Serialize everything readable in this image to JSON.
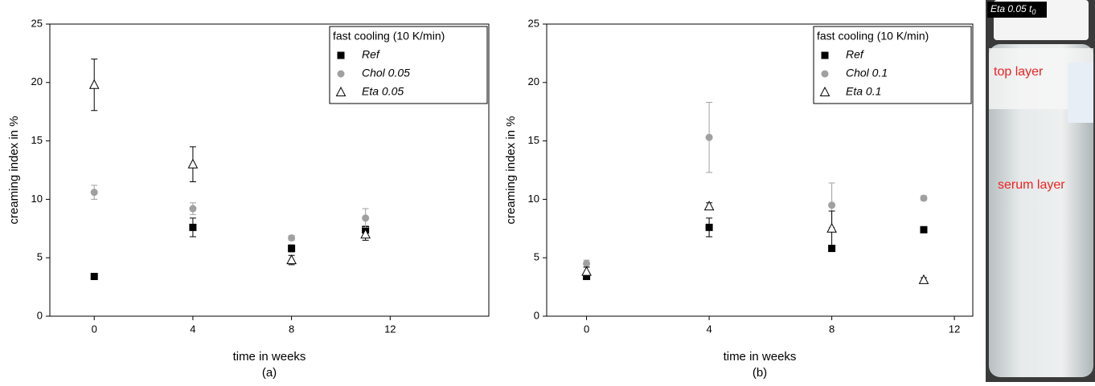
{
  "chart_data": [
    {
      "type": "scatter",
      "x_label": "time in weeks",
      "y_label": "creaming index in %",
      "caption": "(a)",
      "legend_title": "fast cooling (10 K/min)",
      "legend": "upper right",
      "x": [
        0,
        4,
        8,
        11
      ],
      "series": [
        {
          "name": "Ref",
          "color": "#000000",
          "marker": "square",
          "values": [
            3.4,
            7.6,
            5.8,
            7.4
          ],
          "errors": [
            null,
            0.8,
            0.3,
            0.3
          ]
        },
        {
          "name": "Chol 0.05",
          "color": "#a0a0a0",
          "marker": "circle",
          "values": [
            10.6,
            9.2,
            6.7,
            8.4
          ],
          "errors": [
            0.6,
            0.5,
            0.2,
            0.8
          ]
        },
        {
          "name": "Eta 0.05",
          "color": "#000000",
          "marker": "triangle",
          "values": [
            19.8,
            13.0,
            4.8,
            7.0
          ],
          "errors": [
            2.2,
            1.5,
            0.4,
            0.5
          ]
        }
      ],
      "xlim": [
        -1.8,
        16
      ],
      "ylim": [
        0,
        25
      ],
      "xticks": [
        0,
        4,
        8,
        12
      ],
      "yticks": [
        0,
        5,
        10,
        15,
        20,
        25
      ]
    },
    {
      "type": "scatter",
      "x_label": "time in weeks",
      "y_label": "creaming index in %",
      "caption": "(b)",
      "legend_title": "fast cooling (10 K/min)",
      "legend": "upper right",
      "x": [
        0,
        4,
        8,
        11
      ],
      "series": [
        {
          "name": "Ref",
          "color": "#000000",
          "marker": "square",
          "values": [
            3.4,
            7.6,
            5.8,
            7.4
          ],
          "errors": [
            null,
            0.8,
            null,
            null
          ]
        },
        {
          "name": "Chol 0.1",
          "color": "#a0a0a0",
          "marker": "circle",
          "values": [
            4.5,
            15.3,
            9.5,
            10.1
          ],
          "errors": [
            0.3,
            3.0,
            1.9,
            0.2
          ]
        },
        {
          "name": "Eta 0.1",
          "color": "#000000",
          "marker": "triangle",
          "values": [
            3.8,
            9.4,
            7.5,
            3.1
          ],
          "errors": [
            0.4,
            0.3,
            1.5,
            0.2
          ]
        }
      ],
      "xlim": [
        -1.3,
        12.6
      ],
      "ylim": [
        0,
        25
      ],
      "xticks": [
        0,
        4,
        8,
        12
      ],
      "yticks": [
        0,
        5,
        10,
        15,
        20,
        25
      ]
    }
  ],
  "photo": {
    "label": "Eta 0.05 t",
    "label_sub": "0",
    "top": "top layer",
    "serum": "serum layer"
  }
}
